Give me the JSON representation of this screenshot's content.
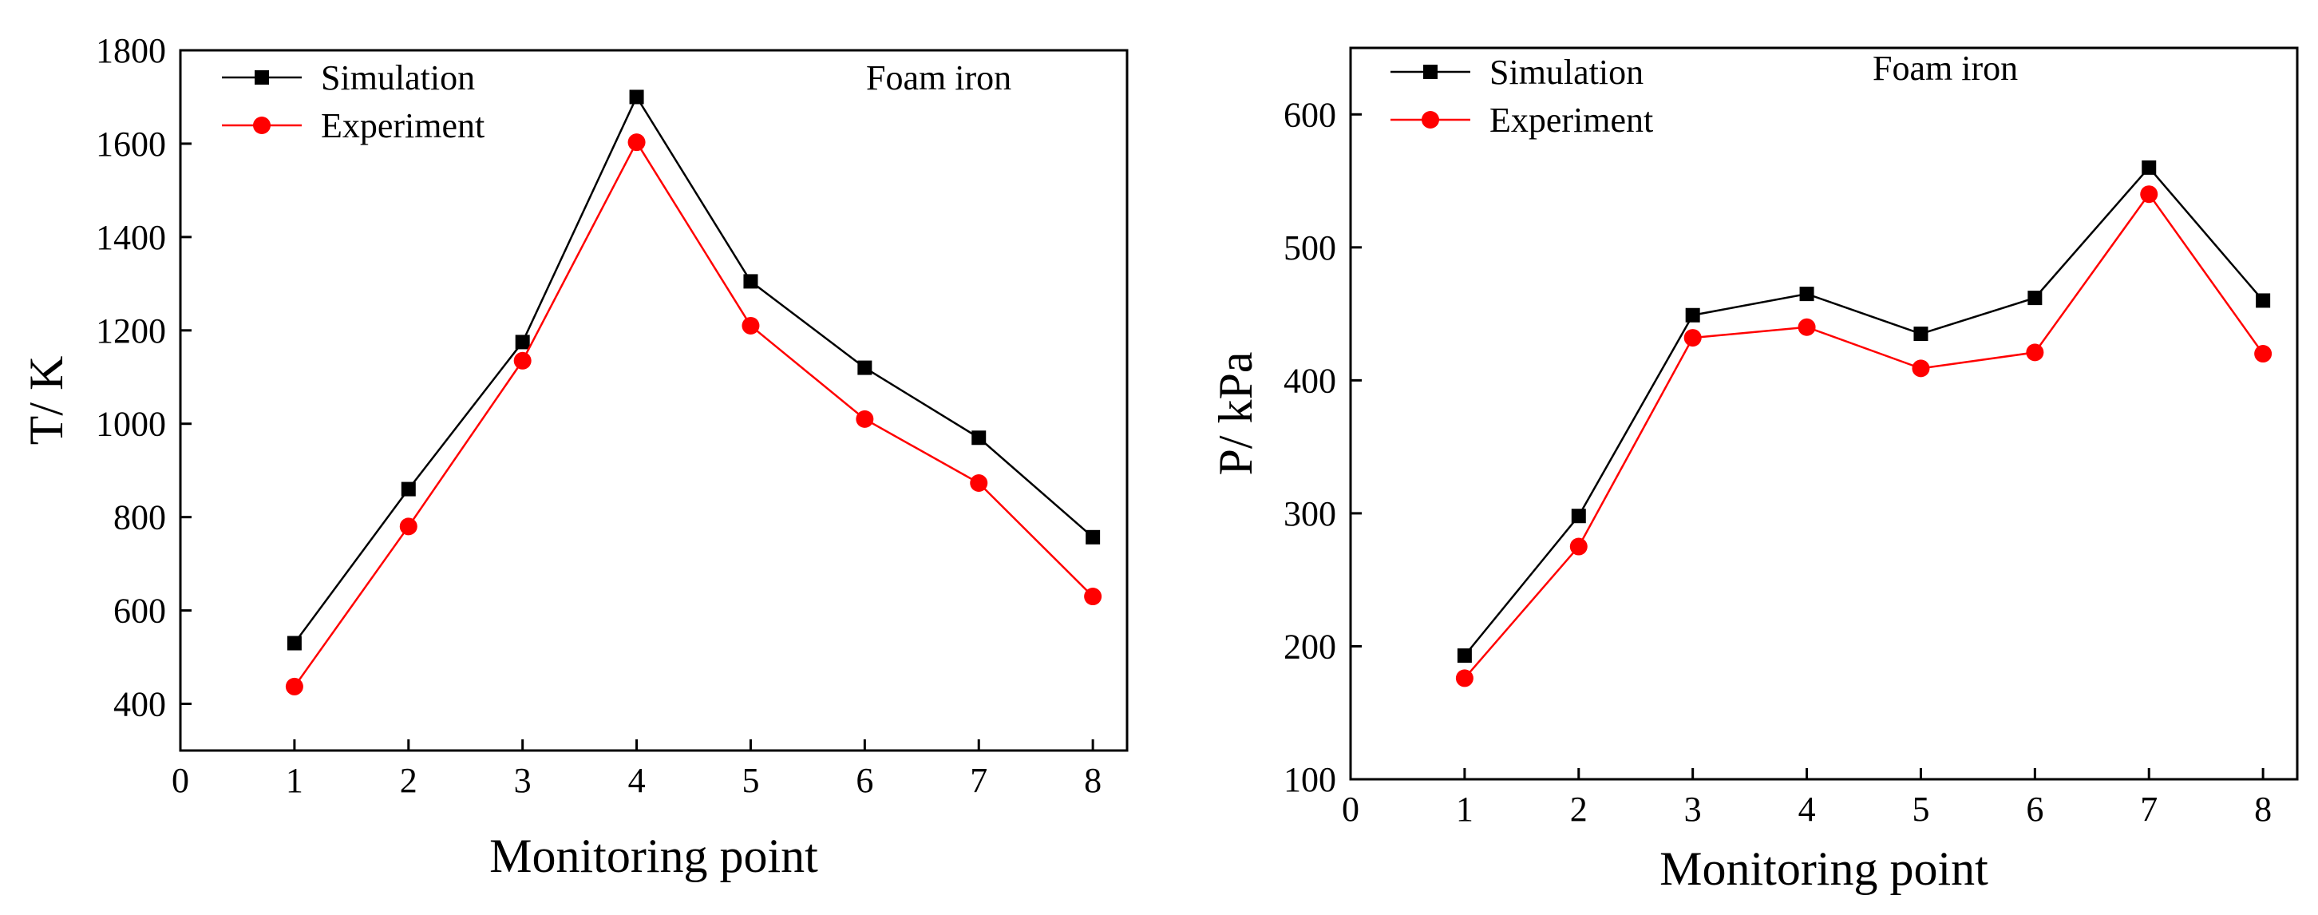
{
  "chart_data": [
    {
      "type": "line",
      "xlabel": "Monitoring point",
      "ylabel": "T/ K",
      "annotation": "Foam iron",
      "xlim": [
        0,
        8.3
      ],
      "ylim": [
        300,
        1800
      ],
      "xticks": [
        0,
        1,
        2,
        3,
        4,
        5,
        6,
        7,
        8
      ],
      "yticks": [
        400,
        600,
        800,
        1000,
        1200,
        1400,
        1600,
        1800
      ],
      "x": [
        1,
        2,
        3,
        4,
        5,
        6,
        7,
        8
      ],
      "series": [
        {
          "name": "Simulation",
          "color": "#000000",
          "marker": "square",
          "values": [
            530,
            860,
            1175,
            1700,
            1305,
            1120,
            970,
            757
          ]
        },
        {
          "name": "Experiment",
          "color": "#ff0000",
          "marker": "circle",
          "values": [
            437,
            780,
            1135,
            1603,
            1210,
            1010,
            873,
            630
          ]
        }
      ],
      "legend": "top-left"
    },
    {
      "type": "line",
      "xlabel": "Monitoring point",
      "ylabel": "P/ kPa",
      "annotation": "Foam iron",
      "xlim": [
        0,
        8.3
      ],
      "ylim": [
        100,
        650
      ],
      "xticks": [
        0,
        1,
        2,
        3,
        4,
        5,
        6,
        7,
        8
      ],
      "yticks": [
        100,
        200,
        300,
        400,
        500,
        600
      ],
      "x": [
        1,
        2,
        3,
        4,
        5,
        6,
        7,
        8
      ],
      "series": [
        {
          "name": "Simulation",
          "color": "#000000",
          "marker": "square",
          "values": [
            193,
            298,
            449,
            465,
            435,
            462,
            560,
            460
          ]
        },
        {
          "name": "Experiment",
          "color": "#ff0000",
          "marker": "circle",
          "values": [
            176,
            275,
            432,
            440,
            409,
            421,
            540,
            420
          ]
        }
      ],
      "legend": "top-left"
    }
  ]
}
